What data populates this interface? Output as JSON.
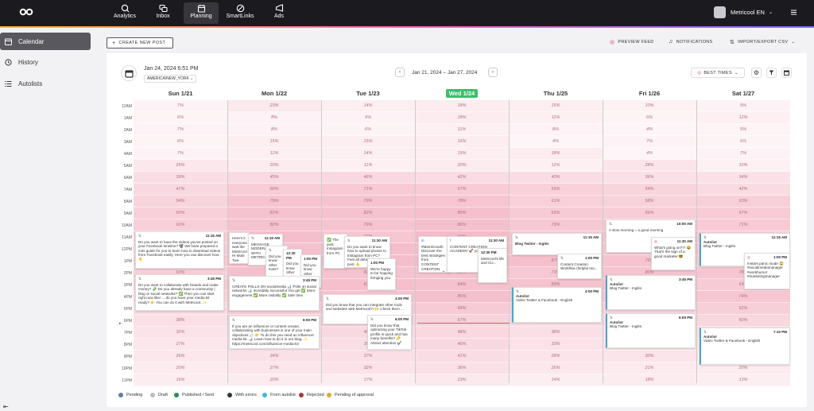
{
  "nav": {
    "items": [
      {
        "label": "Analytics",
        "icon": "chart-icon"
      },
      {
        "label": "Inbox",
        "icon": "inbox-icon"
      },
      {
        "label": "Planning",
        "icon": "calendar-icon",
        "active": true
      },
      {
        "label": "SmartLinks",
        "icon": "link-icon"
      },
      {
        "label": "Ads",
        "icon": "megaphone-icon"
      }
    ],
    "user_label": "Metricool EN"
  },
  "sidebar": {
    "items": [
      {
        "label": "Calendar",
        "active": true
      },
      {
        "label": "History"
      },
      {
        "label": "Autolists"
      }
    ]
  },
  "toolbar": {
    "create_label": "CREATE NEW POST",
    "preview_label": "PREVIEW FEED",
    "notifications_label": "NOTIFICATIONS",
    "import_label": "IMPORT/EXPORT CSV"
  },
  "calendar": {
    "current_datetime": "Jan 24, 2024 6:51 PM",
    "timezone": "AMERICA/NEW_YORK",
    "range_label": "Jan 21, 2024  –  Jan 27, 2024",
    "best_times_label": "BEST TIMES",
    "days": [
      "Sun 1/21",
      "Mon 1/22",
      "Tue 1/23",
      "Wed 1/24",
      "Thu 1/25",
      "Fri 1/26",
      "Sat 1/27"
    ],
    "today_index": 3,
    "hours": [
      "12AM",
      "1AM",
      "2AM",
      "3AM",
      "4AM",
      "5AM",
      "6AM",
      "7AM",
      "8AM",
      "9AM",
      "10AM",
      "11AM",
      "12PM",
      "1PM",
      "2PM",
      "3PM",
      "4PM",
      "5PM",
      "6PM",
      "7PM",
      "8PM",
      "9PM",
      "10PM",
      "11PM"
    ],
    "best_times": [
      [
        "7%",
        "23%",
        "14%",
        "18%",
        "15%",
        "10%",
        "9%"
      ],
      [
        "6%",
        "8%",
        "9%",
        "18%",
        "11%",
        "6%",
        "12%"
      ],
      [
        "7%",
        "8%",
        "6%",
        "11%",
        "8%",
        "4%",
        "5%"
      ],
      [
        "6%",
        "15%",
        "15%",
        "16%",
        "4%",
        "7%",
        "6%"
      ],
      [
        "7%",
        "12%",
        "14%",
        "15%",
        "18%",
        "4%",
        "7%"
      ],
      [
        "26%",
        "20%",
        "11%",
        "20%",
        "12%",
        "28%",
        "10%"
      ],
      [
        "39%",
        "45%",
        "46%",
        "42%",
        "40%",
        "36%",
        "34%"
      ],
      [
        "47%",
        "66%",
        "71%",
        "67%",
        "59%",
        "54%",
        "42%"
      ],
      [
        "54%",
        "79%",
        "79%",
        "78%",
        "61%",
        "58%",
        "63%"
      ],
      [
        "60%",
        "81%",
        "82%",
        "85%",
        "69%",
        "66%",
        "67%"
      ],
      [
        "62%",
        "82%",
        "79%",
        "86%",
        "73%",
        "72%",
        "71%"
      ],
      [
        "63%",
        "88%",
        "77%",
        "94%",
        "76%",
        "77%",
        "68%"
      ],
      [
        "65%",
        "84%",
        "88%",
        "85%",
        "77%",
        "74%",
        "70%"
      ],
      [
        "71%",
        "81%",
        "88%",
        "91%",
        "87%",
        "79%",
        "72%"
      ],
      [
        "63%",
        "85%",
        "82%",
        "80%",
        "73%",
        "80%",
        "78%"
      ],
      [
        "67%",
        "91%",
        "87%",
        "84%",
        "83%",
        "79%",
        "69%"
      ],
      [
        "58%",
        "82%",
        "81%",
        "86%",
        "75%",
        "72%",
        "74%"
      ],
      [
        "45%",
        "66%",
        "72%",
        "68%",
        "58%",
        "53%",
        "62%"
      ],
      [
        "38%",
        "55%",
        "57%",
        "57%",
        "44%",
        "41%",
        "50%"
      ],
      [
        "32%",
        "44%",
        "46%",
        "48%",
        "38%",
        "31%",
        "39%"
      ],
      [
        "27%",
        "41%",
        "39%",
        "46%",
        "33%",
        "29%",
        "27%"
      ],
      [
        "26%",
        "34%",
        "37%",
        "41%",
        "28%",
        "30%",
        "26%"
      ],
      [
        "20%",
        "27%",
        "32%",
        "36%",
        "25%",
        "21%",
        "20%"
      ],
      [
        "16%",
        "20%",
        "17%",
        "23%",
        "14%",
        "18%",
        "13%"
      ]
    ]
  },
  "posts": {
    "sun_1": {
      "time": "11:15 AM",
      "text": "Do you want to have the videos you've posted on your Facebook timeline? 📽️ We have prepared a mini guide for you to learn how to download videos from Facebook easily. Here you can discover how. 👇"
    },
    "sun_2": {
      "time": "3:45 PM",
      "text": "Do you want to collaborate with brands and make money? 💸 Do you already have a community | blog or social networks? ✅ Then you can start right now like! ... do you have your media kit ready? 👉 You can do it with Metricool. ✨"
    },
    "mon_1": {
      "text": "Here's it everyone wait the Metricool Hi Mobi Twe Tool tips"
    },
    "mon_2": {
      "time": "3:45 PM",
      "text": "CREATE POLLS ON socialmedia 📊 Polls on social networks 📊 Incredibly successful You get ✅ More engagement ✅ More visibility ✅ Safe time"
    },
    "mon_3": {
      "time": "6:00 PM",
      "text": "If you are an influencer or content creator, collaborating with businesses is one of your main objectives 📈 👉 To do this you need an influencer media kit. 📊 Learn how to do it in our blog. ✨ https://metricool.com/influencer-media-kit"
    },
    "tue_1": {
      "time": "11:30 AM",
      "text": "Do you want to know how to upload photos to Instagram from PC? Feel all detailed in the post 👆"
    },
    "tue_2": {
      "time": "4:00 PM",
      "text": "Did you know that you can integrate other tools and websites with Metricool?! 🙌 Check them ..."
    },
    "tue_3": {
      "time": "6:00 PM",
      "text": "Did you know that optimizing your TikTok profile is quick and has many benefits? 🔑 Attract attention ✔️"
    },
    "wed_1": {
      "time": "11:30 AM",
      "text": "#MetriGrowth Discover the best strategies from CONTENT CREATION ACADEMY 🚀 you may know..."
    },
    "wed_2": {
      "time": "12:30 PM",
      "text": "Metricool's life and CU..."
    },
    "thu_1": {
      "time": "11:15 AM",
      "tag": "",
      "text": "Blog Twitter - Inglés"
    },
    "thu_2": {
      "time": "1:00 PM",
      "text": "Content Creation Workflow (helpful too..."
    },
    "thu_3": {
      "time": "4:00 PM",
      "tag": "Autolist",
      "text": "Video Twitter & Facebook - English"
    },
    "fri_1": {
      "time": "10:00 AM",
      "text": "A slow morning = a good morning"
    },
    "fri_2": {
      "time": "11:30 AM",
      "text": "What's going on?!? 😂 That's the sign of a good marketer 🤓"
    },
    "fri_3": {
      "time": "3:45 PM",
      "tag": "Autolist",
      "text": "Blog Twitter - Inglés"
    },
    "fri_4": {
      "time": "6:00 PM",
      "tag": "Autolist",
      "text": "Blog Twitter - Inglés"
    },
    "sat_1": {
      "time": "11:15 AM",
      "tag": "Autolist",
      "text": "Blog Twitter - Inglés"
    },
    "sat_2": {
      "time": "1:00 PM",
      "text": "Instant panic mode 😱 #socialmediamanager #workhumor #marketingmanager"
    },
    "sat_3": {
      "time": "7:10 PM",
      "tag": "Autolist",
      "text": "Video Twitter & Facebook - English"
    }
  },
  "legend": [
    {
      "label": "Pending",
      "color": "#5a7fa0"
    },
    {
      "label": "Draft",
      "color": "#bdbdbd"
    },
    {
      "label": "Published / Sent",
      "color": "#2e8b57"
    },
    {
      "label": "With errors",
      "color": "#333333"
    },
    {
      "label": "From autolist",
      "color": "#3dbbd1"
    },
    {
      "label": "Rejected",
      "color": "#a33a3a"
    },
    {
      "label": "Pending of approval",
      "color": "#e4a83b"
    }
  ]
}
